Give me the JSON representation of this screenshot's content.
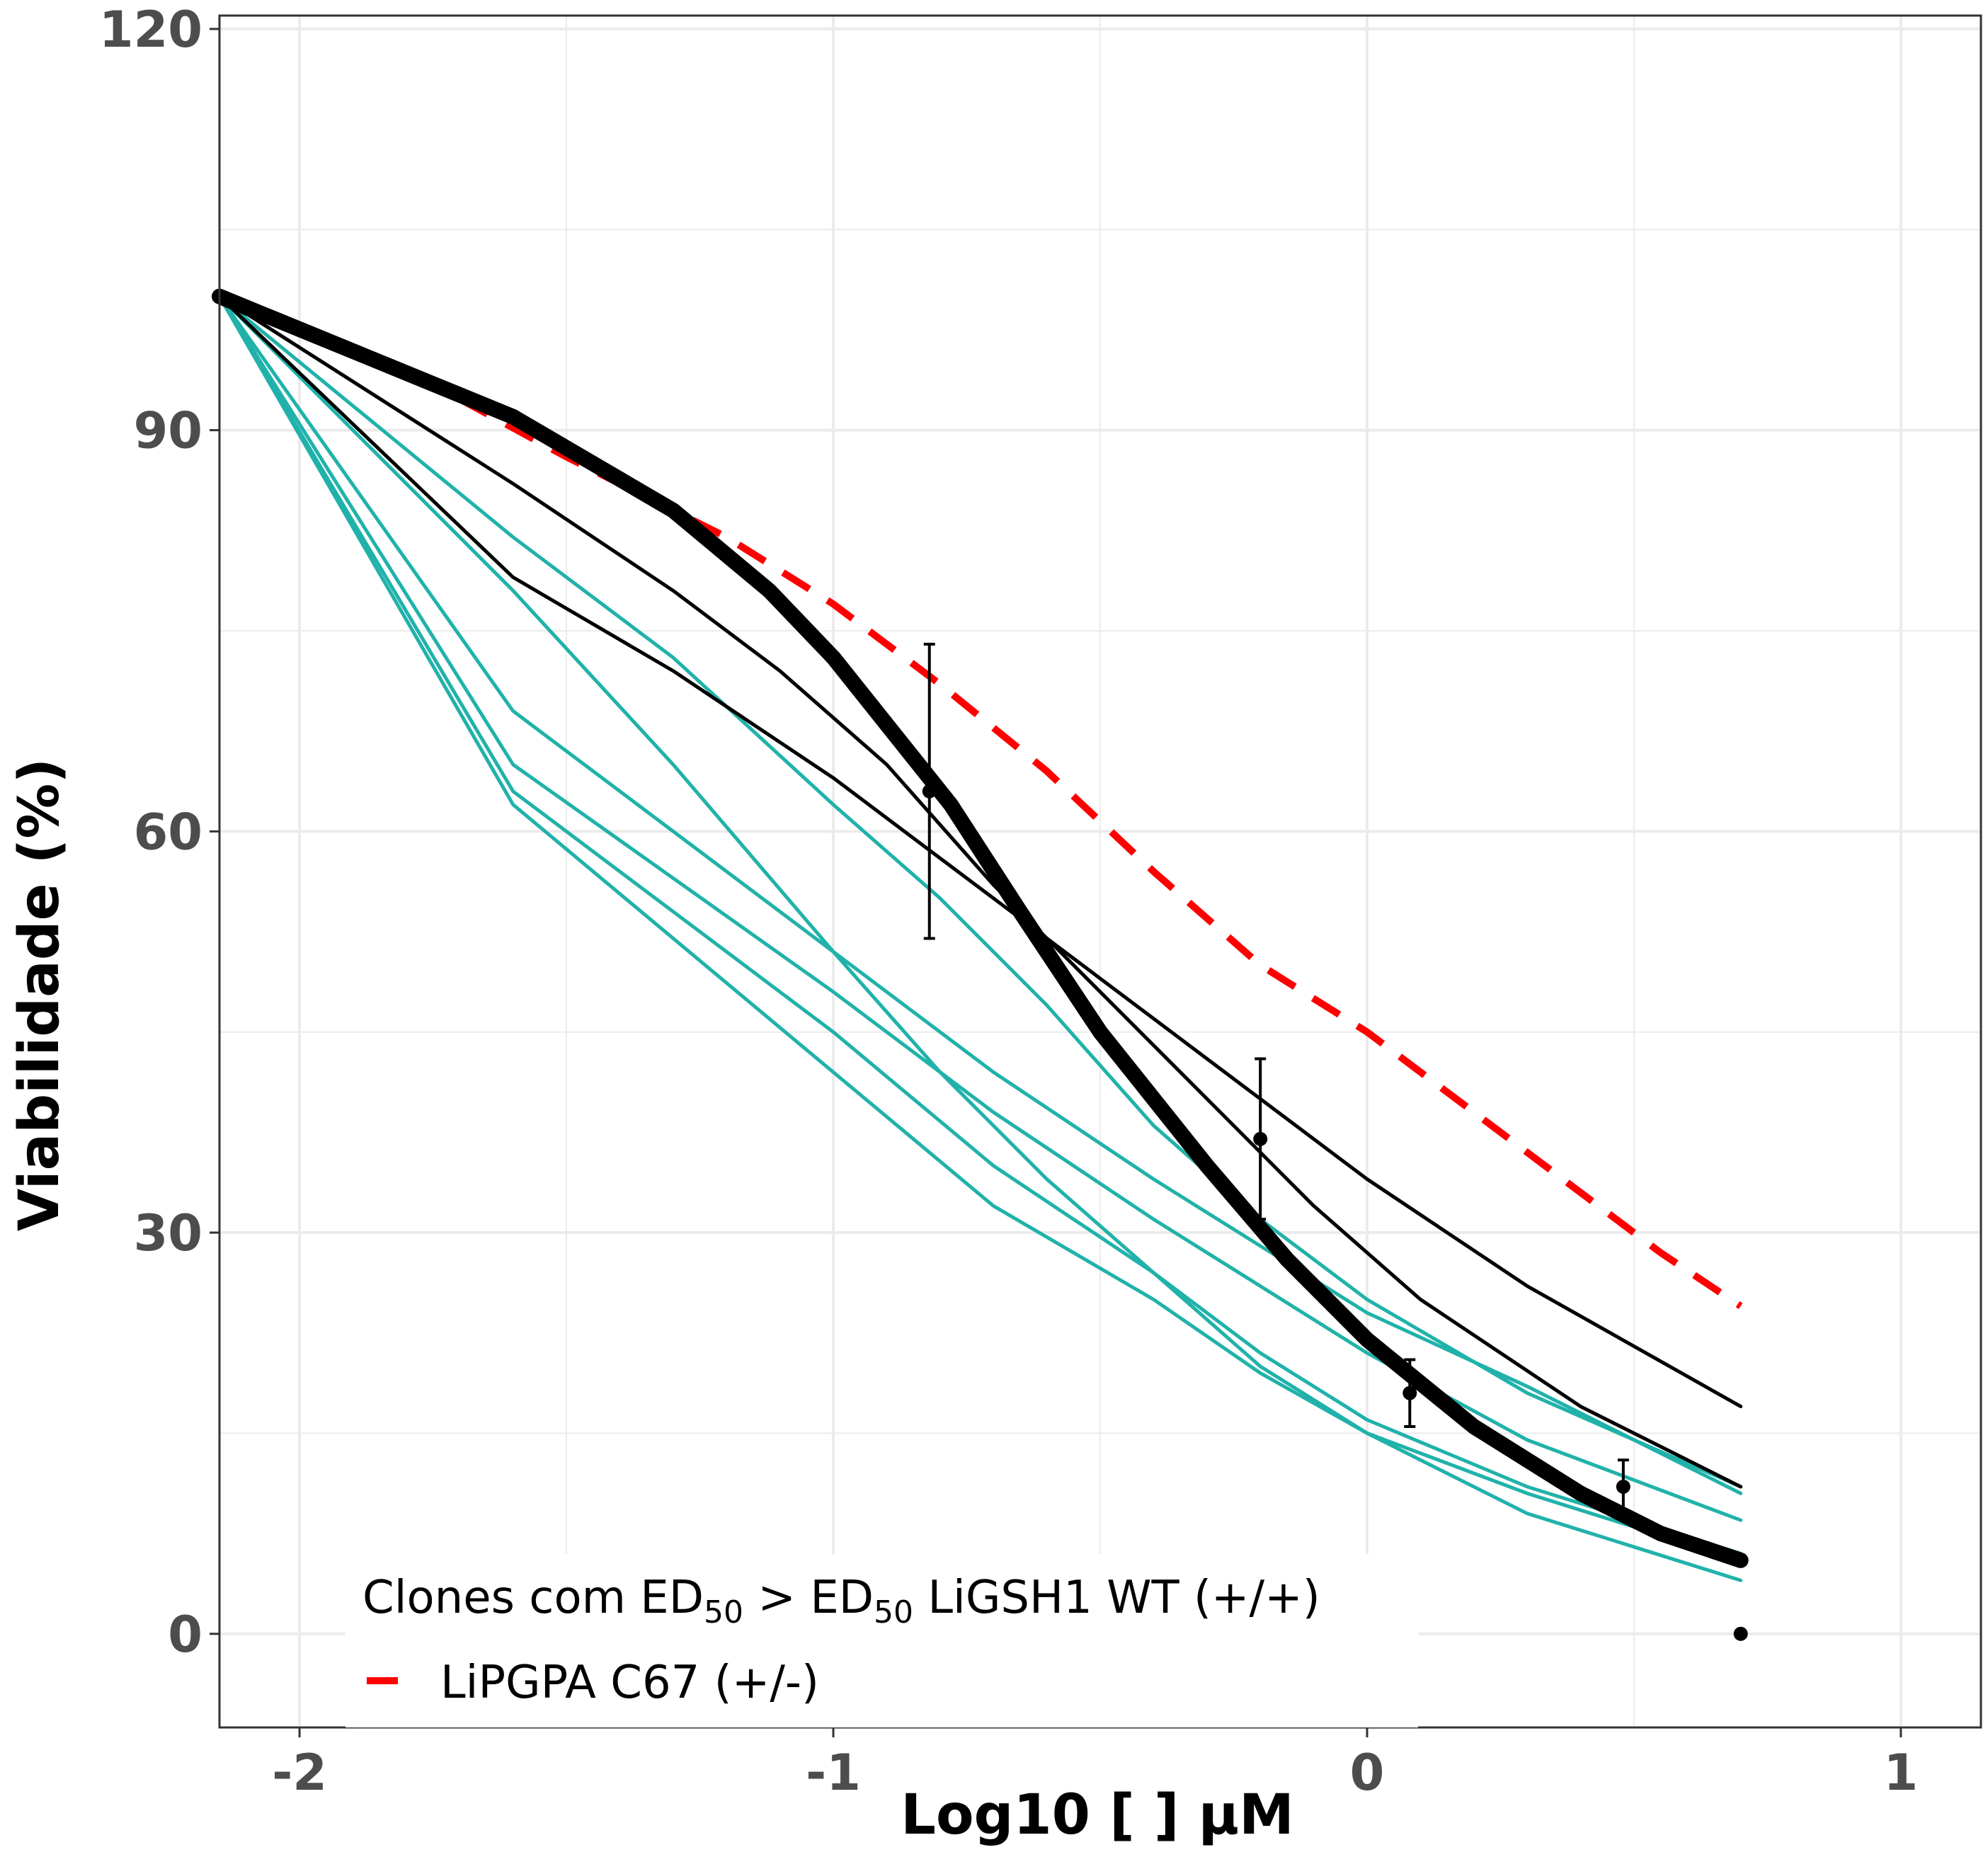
{
  "chart_data": {
    "type": "line",
    "xlabel": "Log10 [ ] µM",
    "ylabel": "Viabilidade (%)",
    "xlim": [
      -2.15,
      1.15
    ],
    "ylim": [
      -7,
      121
    ],
    "x_ticks": [
      -2,
      -1,
      0,
      1
    ],
    "y_ticks": [
      0,
      30,
      60,
      90,
      120
    ],
    "grid": true,
    "legend_position": "bottom-left",
    "colors": {
      "teal": "#20b2aa",
      "black": "#000000",
      "red": "#ff0000",
      "grid": "#ebebeb",
      "tick_text": "#4d4d4d"
    },
    "legend": {
      "title_parts": [
        "Clones com ED",
        "50",
        " > ED",
        "50",
        " LiGSH1 WT (+/+)"
      ],
      "items": [
        {
          "label": "LiPGPA C67 (+/-)",
          "color": "#ff0000",
          "dash": true
        }
      ]
    },
    "series": [
      {
        "style": "black-thick",
        "color": "#000000",
        "width": 22,
        "x": [
          -2.15,
          -1.6,
          -1.3,
          -1.12,
          -1.0,
          -0.88,
          -0.78,
          -0.65,
          -0.5,
          -0.3,
          -0.15,
          0.0,
          0.2,
          0.4,
          0.55,
          0.7
        ],
        "y": [
          100,
          91,
          84,
          78,
          73,
          67,
          62,
          54,
          45,
          35,
          28,
          22,
          15.5,
          10.5,
          7.5,
          5.5
        ]
      },
      {
        "style": "red-dashed",
        "color": "#ff0000",
        "width": 10,
        "dash": true,
        "x": [
          -2.15,
          -1.8,
          -1.5,
          -1.2,
          -1.0,
          -0.8,
          -0.6,
          -0.4,
          -0.2,
          0.0,
          0.2,
          0.4,
          0.55,
          0.7
        ],
        "y": [
          100,
          94.5,
          88,
          82,
          77,
          71,
          64.5,
          57,
          50,
          45,
          39,
          33,
          28.5,
          24.5
        ]
      },
      {
        "style": "black-thin",
        "color": "#000000",
        "width": 5,
        "x": [
          -2.15,
          -1.6,
          -1.3,
          -1.0,
          -0.7,
          -0.5,
          -0.3,
          0.0,
          0.3,
          0.7
        ],
        "y": [
          100,
          79,
          72,
          64,
          55,
          49,
          43,
          34,
          26,
          17
        ]
      },
      {
        "style": "black-thin",
        "color": "#000000",
        "width": 5,
        "x": [
          -2.15,
          -1.6,
          -1.3,
          -1.1,
          -0.9,
          -0.7,
          -0.5,
          -0.3,
          -0.1,
          0.1,
          0.4,
          0.7
        ],
        "y": [
          100,
          86,
          78,
          72,
          65,
          56,
          48,
          40,
          32,
          25,
          17,
          11
        ]
      },
      {
        "style": "teal",
        "color": "#20b2aa",
        "width": 5,
        "x": [
          -2.15,
          -1.6,
          -1.3,
          -1.0,
          -0.8,
          -0.6,
          -0.4,
          -0.2,
          0.0,
          0.3,
          0.7
        ],
        "y": [
          100,
          82,
          73,
          62,
          55,
          47,
          38,
          31,
          25,
          18,
          11
        ]
      },
      {
        "style": "teal",
        "color": "#20b2aa",
        "width": 5,
        "x": [
          -2.15,
          -1.6,
          -1.3,
          -1.0,
          -0.8,
          -0.6,
          -0.4,
          -0.2,
          0.0,
          0.3,
          0.7
        ],
        "y": [
          100,
          78,
          65,
          51,
          42,
          34,
          27,
          20,
          15,
          9,
          4
        ]
      },
      {
        "style": "teal",
        "color": "#20b2aa",
        "width": 5,
        "x": [
          -2.15,
          -1.6,
          -1.0,
          -0.7,
          -0.4,
          -0.2,
          0.0,
          0.3,
          0.7
        ],
        "y": [
          100,
          69,
          51,
          42,
          34,
          29,
          24,
          18.5,
          10.5
        ]
      },
      {
        "style": "teal",
        "color": "#20b2aa",
        "width": 5,
        "x": [
          -2.15,
          -1.6,
          -1.0,
          -0.7,
          -0.4,
          -0.2,
          0.0,
          0.3,
          0.7
        ],
        "y": [
          100,
          65,
          48,
          39,
          31,
          26,
          21,
          14.5,
          8.5
        ]
      },
      {
        "style": "teal",
        "color": "#20b2aa",
        "width": 5,
        "x": [
          -2.15,
          -1.6,
          -1.0,
          -0.7,
          -0.4,
          -0.2,
          0.0,
          0.3,
          0.7
        ],
        "y": [
          100,
          63,
          45,
          35,
          27,
          21,
          16,
          11,
          6
        ]
      },
      {
        "style": "teal",
        "color": "#20b2aa",
        "width": 5,
        "x": [
          -2.15,
          -1.6,
          -1.0,
          -0.7,
          -0.4,
          -0.2,
          0.0,
          0.3,
          0.7
        ],
        "y": [
          100,
          62,
          42,
          32,
          25,
          19.5,
          15,
          10.5,
          5.5
        ]
      }
    ],
    "points": [
      {
        "x": -0.82,
        "y": 63,
        "err_low": 52,
        "err_high": 74
      },
      {
        "x": -0.2,
        "y": 37,
        "err_low": 31,
        "err_high": 43
      },
      {
        "x": 0.08,
        "y": 18,
        "err_low": 15.5,
        "err_high": 20.5
      },
      {
        "x": 0.48,
        "y": 11,
        "err_low": 9,
        "err_high": 13
      },
      {
        "x": 0.7,
        "y": 0
      }
    ]
  }
}
